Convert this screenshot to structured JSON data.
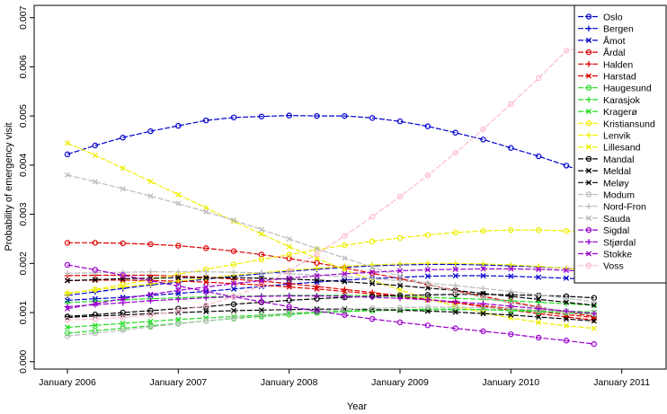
{
  "chart_data": {
    "type": "line",
    "title": "",
    "xlabel": "Year",
    "ylabel": "Probability of emergency visit",
    "xlim": [
      2005.7,
      2011.4
    ],
    "ylim": [
      -0.00015,
      0.00725
    ],
    "x": [
      2006.0,
      2006.25,
      2006.5,
      2006.75,
      2007.0,
      2007.25,
      2007.5,
      2007.75,
      2008.0,
      2008.25,
      2008.5,
      2008.75,
      2009.0,
      2009.25,
      2009.5,
      2009.75,
      2010.0,
      2010.25,
      2010.5,
      2010.75
    ],
    "x_ticks": [
      {
        "value": 2006,
        "label": "January 2006"
      },
      {
        "value": 2007,
        "label": "January 2007"
      },
      {
        "value": 2008,
        "label": "January 2008"
      },
      {
        "value": 2009,
        "label": "January 2009"
      },
      {
        "value": 2010,
        "label": "January 2010"
      },
      {
        "value": 2011,
        "label": "January 2011"
      }
    ],
    "y_ticks": [
      {
        "value": 0.0,
        "label": "0.000"
      },
      {
        "value": 0.001,
        "label": "0.001"
      },
      {
        "value": 0.002,
        "label": "0.002"
      },
      {
        "value": 0.003,
        "label": "0.003"
      },
      {
        "value": 0.004,
        "label": "0.004"
      },
      {
        "value": 0.005,
        "label": "0.005"
      },
      {
        "value": 0.006,
        "label": "0.006"
      },
      {
        "value": 0.007,
        "label": "0.007"
      }
    ],
    "legend_position": "top-right",
    "series": [
      {
        "name": "Oslo",
        "color": "#0000cc",
        "marker": "circle",
        "values": [
          0.00422,
          0.0044,
          0.00456,
          0.00469,
          0.0048,
          0.00491,
          0.00497,
          0.00499,
          0.00501,
          0.005,
          0.005,
          0.00496,
          0.00489,
          0.00479,
          0.00466,
          0.00452,
          0.00435,
          0.00418,
          0.00399,
          0.00378
        ]
      },
      {
        "name": "Bergen",
        "color": "#0000cc",
        "marker": "plus",
        "values": [
          0.00135,
          0.00142,
          0.00149,
          0.00156,
          0.00162,
          0.00168,
          0.00174,
          0.00179,
          0.00184,
          0.00188,
          0.00192,
          0.00195,
          0.00197,
          0.00198,
          0.00198,
          0.00197,
          0.00195,
          0.00193,
          0.0019,
          0.00186
        ]
      },
      {
        "name": "Åmot",
        "color": "#0000cc",
        "marker": "x",
        "values": [
          0.00125,
          0.00128,
          0.00131,
          0.00135,
          0.00139,
          0.00143,
          0.00148,
          0.00153,
          0.00158,
          0.00162,
          0.00166,
          0.00169,
          0.00172,
          0.00174,
          0.00175,
          0.00175,
          0.00174,
          0.00172,
          0.0017,
          0.00167
        ]
      },
      {
        "name": "Årdal",
        "color": "#dd0000",
        "marker": "circle",
        "values": [
          0.00242,
          0.00242,
          0.00241,
          0.00239,
          0.00236,
          0.00231,
          0.00225,
          0.00218,
          0.0021,
          0.00201,
          0.00191,
          0.0018,
          0.00169,
          0.00157,
          0.00145,
          0.00133,
          0.00122,
          0.00111,
          0.00101,
          0.00092
        ]
      },
      {
        "name": "Halden",
        "color": "#dd0000",
        "marker": "plus",
        "values": [
          0.00175,
          0.00176,
          0.00176,
          0.00176,
          0.00174,
          0.00172,
          0.00168,
          0.00164,
          0.00159,
          0.00153,
          0.00147,
          0.00141,
          0.00134,
          0.00127,
          0.0012,
          0.00112,
          0.00105,
          0.00098,
          0.00091,
          0.00085
        ]
      },
      {
        "name": "Harstad",
        "color": "#dd0000",
        "marker": "x",
        "values": [
          0.00165,
          0.00166,
          0.00166,
          0.00165,
          0.00164,
          0.00162,
          0.00159,
          0.00156,
          0.00152,
          0.00148,
          0.00143,
          0.00138,
          0.00132,
          0.00126,
          0.0012,
          0.00114,
          0.00108,
          0.00102,
          0.00096,
          0.0009
        ]
      },
      {
        "name": "Haugesund",
        "color": "#22dd22",
        "marker": "circle",
        "values": [
          0.00058,
          0.00063,
          0.00068,
          0.00073,
          0.00078,
          0.00083,
          0.00088,
          0.00092,
          0.00096,
          0.001,
          0.00103,
          0.00105,
          0.00106,
          0.00107,
          0.00107,
          0.00106,
          0.00104,
          0.00102,
          0.001,
          0.00097
        ]
      },
      {
        "name": "Karasjok",
        "color": "#22dd22",
        "marker": "plus",
        "values": [
          0.0012,
          0.00123,
          0.00126,
          0.00128,
          0.0013,
          0.00132,
          0.00133,
          0.00134,
          0.00135,
          0.00135,
          0.00135,
          0.00134,
          0.00133,
          0.00131,
          0.00129,
          0.00127,
          0.00124,
          0.00121,
          0.00118,
          0.00115
        ]
      },
      {
        "name": "Kragerø",
        "color": "#22dd22",
        "marker": "x",
        "values": [
          0.0007,
          0.00074,
          0.00078,
          0.00082,
          0.00086,
          0.00089,
          0.00092,
          0.00095,
          0.00098,
          0.001,
          0.00102,
          0.00104,
          0.00105,
          0.00106,
          0.00106,
          0.00106,
          0.00105,
          0.00104,
          0.00103,
          0.00101
        ]
      },
      {
        "name": "Kristiansund",
        "color": "#eeee00",
        "marker": "circle",
        "values": [
          0.00138,
          0.00147,
          0.00157,
          0.00167,
          0.00178,
          0.00188,
          0.00198,
          0.00208,
          0.00218,
          0.00228,
          0.00237,
          0.00245,
          0.00252,
          0.00258,
          0.00263,
          0.00266,
          0.00268,
          0.00268,
          0.00266,
          0.00263
        ]
      },
      {
        "name": "Lenvik",
        "color": "#eeee00",
        "marker": "plus",
        "values": [
          0.0014,
          0.00146,
          0.00152,
          0.00158,
          0.00164,
          0.0017,
          0.00176,
          0.00181,
          0.00186,
          0.0019,
          0.00194,
          0.00197,
          0.00199,
          0.002,
          0.002,
          0.00199,
          0.00197,
          0.00194,
          0.0019,
          0.00185
        ]
      },
      {
        "name": "Lillesand",
        "color": "#eeee00",
        "marker": "x",
        "values": [
          0.00445,
          0.0042,
          0.00394,
          0.00367,
          0.0034,
          0.00313,
          0.00286,
          0.0026,
          0.00234,
          0.0021,
          0.00187,
          0.00166,
          0.00146,
          0.00128,
          0.00113,
          0.001,
          0.00089,
          0.0008,
          0.00073,
          0.00068
        ]
      },
      {
        "name": "Mandal",
        "color": "#000000",
        "marker": "circle",
        "values": [
          0.00092,
          0.00096,
          0.001,
          0.00104,
          0.00108,
          0.00112,
          0.00117,
          0.00121,
          0.00125,
          0.00128,
          0.00131,
          0.00133,
          0.00135,
          0.00136,
          0.00137,
          0.00137,
          0.00136,
          0.00135,
          0.00133,
          0.0013
        ]
      },
      {
        "name": "Meldal",
        "color": "#000000",
        "marker": "x",
        "values": [
          0.00165,
          0.00167,
          0.00169,
          0.0017,
          0.00171,
          0.00171,
          0.00171,
          0.0017,
          0.00168,
          0.00166,
          0.00163,
          0.00159,
          0.00155,
          0.0015,
          0.00145,
          0.00139,
          0.00133,
          0.00127,
          0.00121,
          0.00115
        ]
      },
      {
        "name": "Meløy",
        "color": "#000000",
        "marker": "x",
        "values": [
          0.0009,
          0.00093,
          0.00095,
          0.00098,
          0.001,
          0.00102,
          0.00104,
          0.00105,
          0.00106,
          0.00107,
          0.00107,
          0.00106,
          0.00105,
          0.00103,
          0.00101,
          0.00098,
          0.00095,
          0.00091,
          0.00087,
          0.00083
        ]
      },
      {
        "name": "Modum",
        "color": "#bbbbbb",
        "marker": "circle",
        "values": [
          0.00052,
          0.00058,
          0.00064,
          0.00071,
          0.00077,
          0.00083,
          0.00089,
          0.00094,
          0.00099,
          0.00103,
          0.00106,
          0.00109,
          0.0011,
          0.00111,
          0.00111,
          0.0011,
          0.00108,
          0.00105,
          0.00102,
          0.00098
        ]
      },
      {
        "name": "Nord-Fron",
        "color": "#bbbbbb",
        "marker": "plus",
        "values": [
          0.0018,
          0.00181,
          0.00182,
          0.00183,
          0.00183,
          0.00183,
          0.00182,
          0.00181,
          0.00179,
          0.00176,
          0.00173,
          0.00169,
          0.00165,
          0.0016,
          0.00155,
          0.00149,
          0.00143,
          0.00136,
          0.00129,
          0.00122
        ]
      },
      {
        "name": "Sauda",
        "color": "#bbbbbb",
        "marker": "x",
        "values": [
          0.0038,
          0.00366,
          0.00352,
          0.00337,
          0.00322,
          0.00305,
          0.00288,
          0.00269,
          0.0025,
          0.0023,
          0.00211,
          0.00192,
          0.00174,
          0.00158,
          0.00143,
          0.0013,
          0.00119,
          0.0011,
          0.00103,
          0.00098
        ]
      },
      {
        "name": "Sigdal",
        "color": "#9900cc",
        "marker": "circle",
        "values": [
          0.00197,
          0.00187,
          0.00176,
          0.00165,
          0.00154,
          0.00143,
          0.00132,
          0.00122,
          0.00112,
          0.00103,
          0.00095,
          0.00087,
          0.0008,
          0.00074,
          0.00068,
          0.00062,
          0.00056,
          0.00049,
          0.00043,
          0.00036
        ]
      },
      {
        "name": "Stjørdal",
        "color": "#9900cc",
        "marker": "plus",
        "values": [
          0.00112,
          0.00116,
          0.0012,
          0.00124,
          0.00127,
          0.0013,
          0.00132,
          0.00133,
          0.00134,
          0.00134,
          0.00133,
          0.00131,
          0.00129,
          0.00126,
          0.00122,
          0.00118,
          0.00113,
          0.00108,
          0.00103,
          0.00098
        ]
      },
      {
        "name": "Stokke",
        "color": "#9900cc",
        "marker": "x",
        "values": [
          0.00108,
          0.00118,
          0.00128,
          0.00137,
          0.00145,
          0.00152,
          0.00159,
          0.00165,
          0.0017,
          0.00175,
          0.00179,
          0.00182,
          0.00185,
          0.00187,
          0.00188,
          0.00189,
          0.00189,
          0.00188,
          0.00186,
          0.00183
        ]
      },
      {
        "name": "Voss",
        "color": "#ffbbcc",
        "marker": "circle",
        "values": [
          0.00085,
          0.00087,
          0.0009,
          0.00095,
          0.00103,
          0.00115,
          0.00132,
          0.00155,
          0.00185,
          0.00219,
          0.00256,
          0.00295,
          0.00336,
          0.00379,
          0.00425,
          0.00473,
          0.00524,
          0.00577,
          0.00633,
          0.00641
        ]
      }
    ]
  }
}
